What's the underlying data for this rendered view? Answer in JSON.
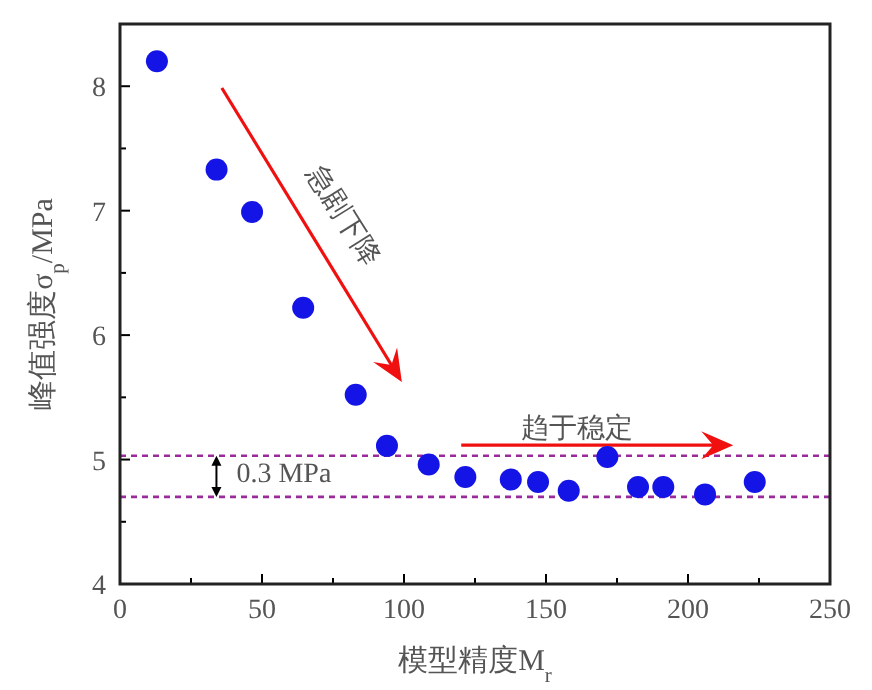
{
  "chart_data": {
    "type": "scatter",
    "xlabel": "模型精度M$_{r}$",
    "ylabel": "峰值强度σ$_{p}$/MPa",
    "x": [
      13,
      34,
      46.5,
      64.5,
      83,
      94,
      108.7,
      121.6,
      137.6,
      147.2,
      158,
      171.6,
      182.4,
      191.3,
      206,
      223.5
    ],
    "series": [
      {
        "color": "#1414e6",
        "values": [
          8.2,
          7.33,
          6.99,
          6.22,
          5.52,
          5.11,
          4.96,
          4.86,
          4.84,
          4.82,
          4.75,
          5.02,
          4.78,
          4.78,
          4.72,
          4.82
        ]
      }
    ],
    "marker": "circle",
    "grid": false,
    "xlim": [
      0,
      250
    ],
    "ylim": [
      4,
      8.5
    ],
    "xticks": [
      0,
      {
        "value": 25,
        "label": null
      },
      50,
      {
        "value": 75,
        "label": null
      },
      100,
      {
        "value": 125,
        "label": null
      },
      150,
      {
        "value": 175,
        "label": null
      },
      200,
      {
        "value": 225,
        "label": null
      },
      250
    ],
    "yticks": [
      4,
      {
        "value": 4.5,
        "label": null
      },
      5,
      {
        "value": 5.5,
        "label": null
      },
      6,
      {
        "value": 6.5,
        "label": null
      },
      7,
      {
        "value": 7.5,
        "label": null
      },
      8
    ],
    "ref_lines": [
      {
        "axis": "y",
        "value": 5.03,
        "color": "#9b2a9b",
        "line_style": "dashed"
      },
      {
        "axis": "y",
        "value": 4.7,
        "color": "#9b2a9b",
        "line_style": "dashed"
      }
    ],
    "annotations": [
      "急剧下降",
      "趋于稳定",
      "0.3 MPa"
    ]
  }
}
